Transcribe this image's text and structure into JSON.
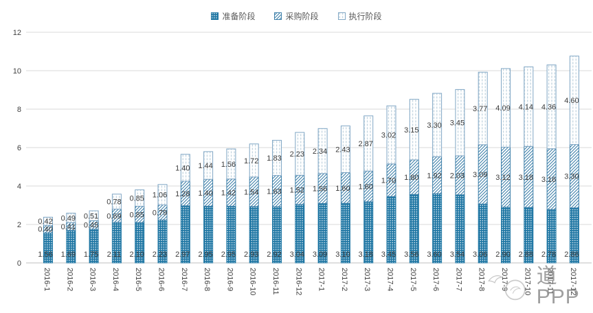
{
  "legend": {
    "items": [
      {
        "label": "准备阶段",
        "pattern": "dots"
      },
      {
        "label": "采购阶段",
        "pattern": "hatch"
      },
      {
        "label": "执行阶段",
        "pattern": "dashes"
      }
    ]
  },
  "watermark": {
    "text": "道PPP"
  },
  "chart_data": {
    "type": "bar",
    "stacked": true,
    "title": "",
    "xlabel": "",
    "ylabel": "",
    "ylim": [
      0,
      12
    ],
    "yticks": [
      0,
      2,
      4,
      6,
      8,
      10,
      12
    ],
    "grid": "horizontal",
    "legend_position": "top-center",
    "label_format": "0.00",
    "categories": [
      "2016-1",
      "2016-2",
      "2016-3",
      "2016-4",
      "2016-5",
      "2016-6",
      "2016-7",
      "2016-8",
      "2016-9",
      "2016-10",
      "2016-11",
      "2016-12",
      "2017-1",
      "2017-2",
      "2017-3",
      "2017-4",
      "2017-5",
      "2017-6",
      "2017-7",
      "2017-8",
      "2017-9",
      "2017-10",
      "2017-11",
      "2017-12"
    ],
    "series": [
      {
        "name": "准备阶段",
        "pattern": "dots",
        "values": [
          1.56,
          1.69,
          1.75,
          2.11,
          2.1,
          2.23,
          2.97,
          2.95,
          2.95,
          2.93,
          2.92,
          3.04,
          3.09,
          3.1,
          3.18,
          3.45,
          3.56,
          3.6,
          3.54,
          3.06,
          2.9,
          2.88,
          2.78,
          2.86
        ]
      },
      {
        "name": "采购阶段",
        "pattern": "hatch",
        "values": [
          0.4,
          0.41,
          0.45,
          0.69,
          0.85,
          0.79,
          1.28,
          1.4,
          1.42,
          1.54,
          1.63,
          1.52,
          1.56,
          1.6,
          1.6,
          1.7,
          1.8,
          1.92,
          2.03,
          3.09,
          3.12,
          3.18,
          3.16,
          3.3
        ]
      },
      {
        "name": "执行阶段",
        "pattern": "dashes",
        "values": [
          0.42,
          0.49,
          0.51,
          0.78,
          0.85,
          1.06,
          1.4,
          1.44,
          1.56,
          1.72,
          1.83,
          2.23,
          2.34,
          2.43,
          2.87,
          3.02,
          3.15,
          3.3,
          3.45,
          3.77,
          4.09,
          4.14,
          4.36,
          4.6
        ]
      }
    ],
    "colors": {
      "bar_blue": "#2077A4",
      "hatch_blue": "#3D7FA9",
      "light_blue_border": "#7FA6C4",
      "dash_blue": "#AFC7D6",
      "gridline": "#D9D9D9",
      "axis_line": "#BFBFBF",
      "label_text": "#3B3B3B",
      "axis_text": "#404040",
      "legend_text": "#595959",
      "watermark_gray": "#8F8F8F"
    }
  }
}
